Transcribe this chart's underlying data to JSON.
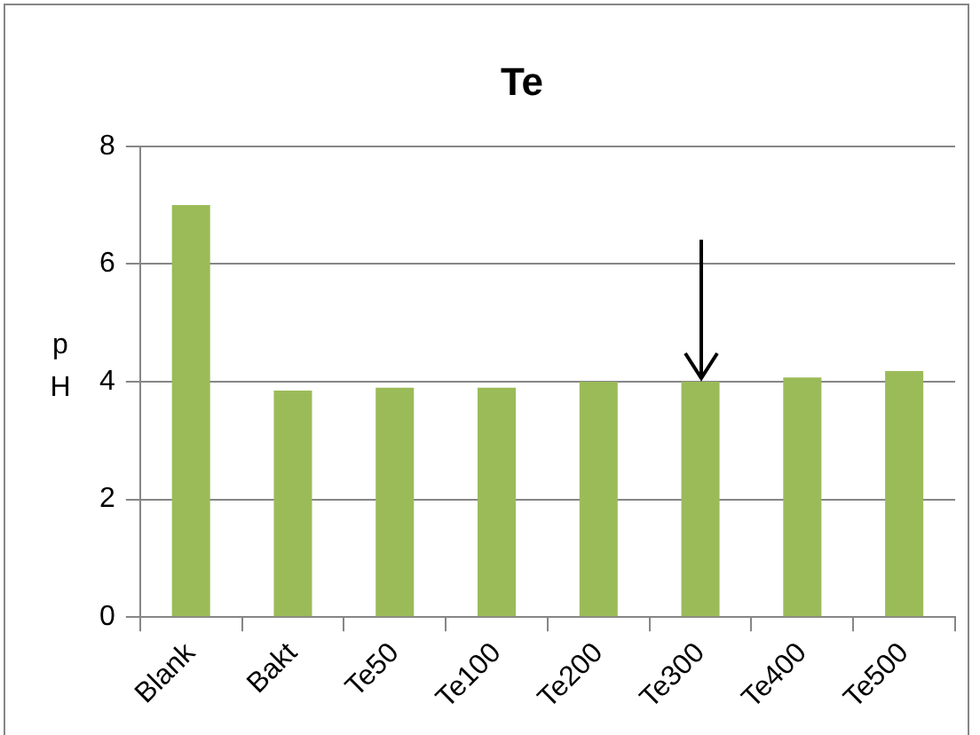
{
  "chart_data": {
    "type": "bar",
    "title": "Te",
    "ylabel": "pH",
    "categories": [
      "Blank",
      "Bakt",
      "Te50",
      "Te100",
      "Te200",
      "Te300",
      "Te400",
      "Te500"
    ],
    "values": [
      7,
      3.85,
      3.9,
      3.9,
      4,
      4,
      4.07,
      4.18
    ],
    "color": "#9bbb59",
    "ylim": [
      0,
      8
    ],
    "yticks": [
      0,
      2,
      4,
      6,
      8
    ],
    "grid": "y"
  }
}
